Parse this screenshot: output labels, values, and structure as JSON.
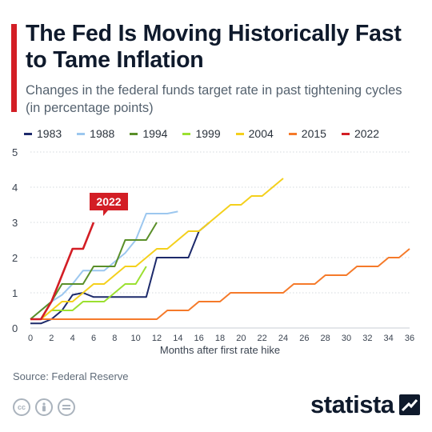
{
  "header": {
    "title": "The Fed Is Moving Historically Fast to Tame Inflation",
    "subtitle": "Changes in the federal funds target rate in past tightening cycles (in percentage points)"
  },
  "footer": {
    "source": "Source: Federal Reserve",
    "brand": "statista",
    "license_icons": [
      "cc-icon",
      "attribution-icon",
      "no-derivatives-icon"
    ]
  },
  "chart_data": {
    "type": "line",
    "title": "The Fed Is Moving Historically Fast to Tame Inflation",
    "subtitle": "Changes in the federal funds target rate in past tightening cycles (in percentage points)",
    "xlabel": "Months after first rate hike",
    "ylabel": "",
    "xlim": [
      0,
      36
    ],
    "ylim": [
      0,
      5
    ],
    "xticks": [
      0,
      2,
      4,
      6,
      8,
      10,
      12,
      14,
      16,
      18,
      20,
      22,
      24,
      26,
      28,
      30,
      32,
      34,
      36
    ],
    "yticks": [
      0,
      1,
      2,
      3,
      4,
      5
    ],
    "grid": "horizontal-dotted",
    "legend_position": "top",
    "annotation": {
      "text": "2022",
      "series": "2022",
      "color": "#d31e25"
    },
    "series": [
      {
        "name": "1983",
        "color": "#1d2a6b",
        "x": [
          0,
          1,
          2,
          3,
          4,
          5,
          6,
          7,
          8,
          9,
          10,
          11,
          12,
          13,
          14,
          15,
          16,
          17
        ],
        "y": [
          0.13,
          0.13,
          0.25,
          0.5,
          0.94,
          1.0,
          0.88,
          0.88,
          0.88,
          0.88,
          0.88,
          0.88,
          2.0,
          2.0,
          2.0,
          2.0,
          2.75,
          3.0
        ]
      },
      {
        "name": "1988",
        "color": "#9cc7ef",
        "x": [
          0,
          1,
          2,
          3,
          4,
          5,
          6,
          7,
          8,
          9,
          10,
          11,
          12,
          13,
          14
        ],
        "y": [
          0.25,
          0.5,
          0.75,
          0.94,
          1.25,
          1.63,
          1.63,
          1.63,
          1.88,
          2.13,
          2.5,
          3.25,
          3.25,
          3.25,
          3.31
        ]
      },
      {
        "name": "1994",
        "color": "#5a8f29",
        "x": [
          0,
          1,
          2,
          3,
          4,
          5,
          6,
          7,
          8,
          9,
          10,
          11,
          12
        ],
        "y": [
          0.25,
          0.5,
          0.75,
          1.25,
          1.25,
          1.25,
          1.75,
          1.75,
          1.75,
          2.5,
          2.5,
          2.5,
          3.0
        ]
      },
      {
        "name": "1999",
        "color": "#9be030",
        "x": [
          0,
          1,
          2,
          3,
          4,
          5,
          6,
          7,
          8,
          9,
          10,
          11
        ],
        "y": [
          0.25,
          0.25,
          0.5,
          0.5,
          0.5,
          0.75,
          0.75,
          0.75,
          1.0,
          1.25,
          1.25,
          1.75
        ]
      },
      {
        "name": "2004",
        "color": "#f4d01c",
        "x": [
          0,
          1,
          2,
          3,
          4,
          5,
          6,
          7,
          8,
          9,
          10,
          11,
          12,
          13,
          14,
          15,
          16,
          17,
          18,
          19,
          20,
          21,
          22,
          23,
          24
        ],
        "y": [
          0.25,
          0.25,
          0.5,
          0.75,
          0.75,
          1.0,
          1.25,
          1.25,
          1.5,
          1.75,
          1.75,
          2.0,
          2.25,
          2.25,
          2.5,
          2.75,
          2.75,
          3.0,
          3.25,
          3.5,
          3.5,
          3.75,
          3.75,
          4.0,
          4.25
        ]
      },
      {
        "name": "2015",
        "color": "#f57a2a",
        "x": [
          0,
          12,
          13,
          14,
          15,
          16,
          17,
          18,
          19,
          20,
          21,
          22,
          23,
          24,
          25,
          26,
          27,
          28,
          29,
          30,
          31,
          32,
          33,
          34,
          35,
          36
        ],
        "y": [
          0.25,
          0.25,
          0.5,
          0.5,
          0.5,
          0.75,
          0.75,
          0.75,
          1.0,
          1.0,
          1.0,
          1.0,
          1.0,
          1.0,
          1.25,
          1.25,
          1.25,
          1.5,
          1.5,
          1.5,
          1.75,
          1.75,
          1.75,
          2.0,
          2.0,
          2.25
        ]
      },
      {
        "name": "2022",
        "color": "#d31e25",
        "x": [
          0,
          1,
          2,
          3,
          4,
          5,
          6
        ],
        "y": [
          0.25,
          0.25,
          0.75,
          1.5,
          2.25,
          2.25,
          3.0
        ]
      }
    ]
  }
}
